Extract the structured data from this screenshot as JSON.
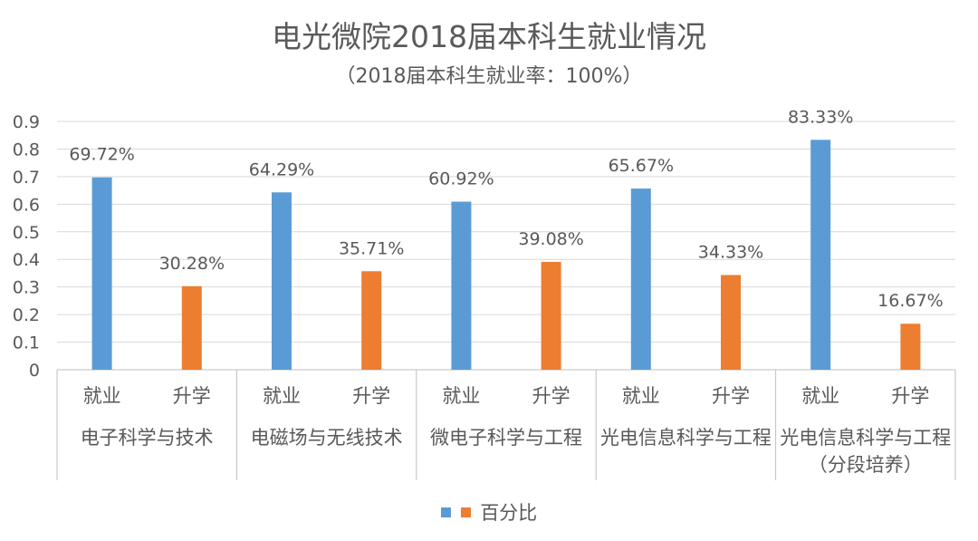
{
  "chart_data": {
    "type": "bar",
    "title": "电光微院2018届本科生就业情况",
    "subtitle": "（2018届本科生就业率：100%）",
    "ylim": [
      0,
      0.9
    ],
    "yticks": [
      "0",
      "0.1",
      "0.2",
      "0.3",
      "0.4",
      "0.5",
      "0.6",
      "0.7",
      "0.8",
      "0.9"
    ],
    "grid": true,
    "groups": [
      {
        "label": "电子科学与技术",
        "categories": [
          "就业",
          "升学"
        ],
        "values": [
          0.6972,
          0.3028
        ],
        "labels": [
          "69.72%",
          "30.28%"
        ]
      },
      {
        "label": "电磁场与无线技术",
        "categories": [
          "就业",
          "升学"
        ],
        "values": [
          0.6429,
          0.3571
        ],
        "labels": [
          "64.29%",
          "35.71%"
        ]
      },
      {
        "label": "微电子科学与工程",
        "categories": [
          "就业",
          "升学"
        ],
        "values": [
          0.6092,
          0.3908
        ],
        "labels": [
          "60.92%",
          "39.08%"
        ]
      },
      {
        "label": "光电信息科学与工程",
        "categories": [
          "就业",
          "升学"
        ],
        "values": [
          0.6567,
          0.3433
        ],
        "labels": [
          "65.67%",
          "34.33%"
        ]
      },
      {
        "label": "光电信息科学与工程（分段培养）",
        "categories": [
          "就业",
          "升学"
        ],
        "values": [
          0.8333,
          0.1667
        ],
        "labels": [
          "83.33%",
          "16.67%"
        ]
      }
    ],
    "series_name": "百分比",
    "colors": [
      "#5b9bd5",
      "#ed7d31"
    ],
    "legend_position": "bottom"
  }
}
